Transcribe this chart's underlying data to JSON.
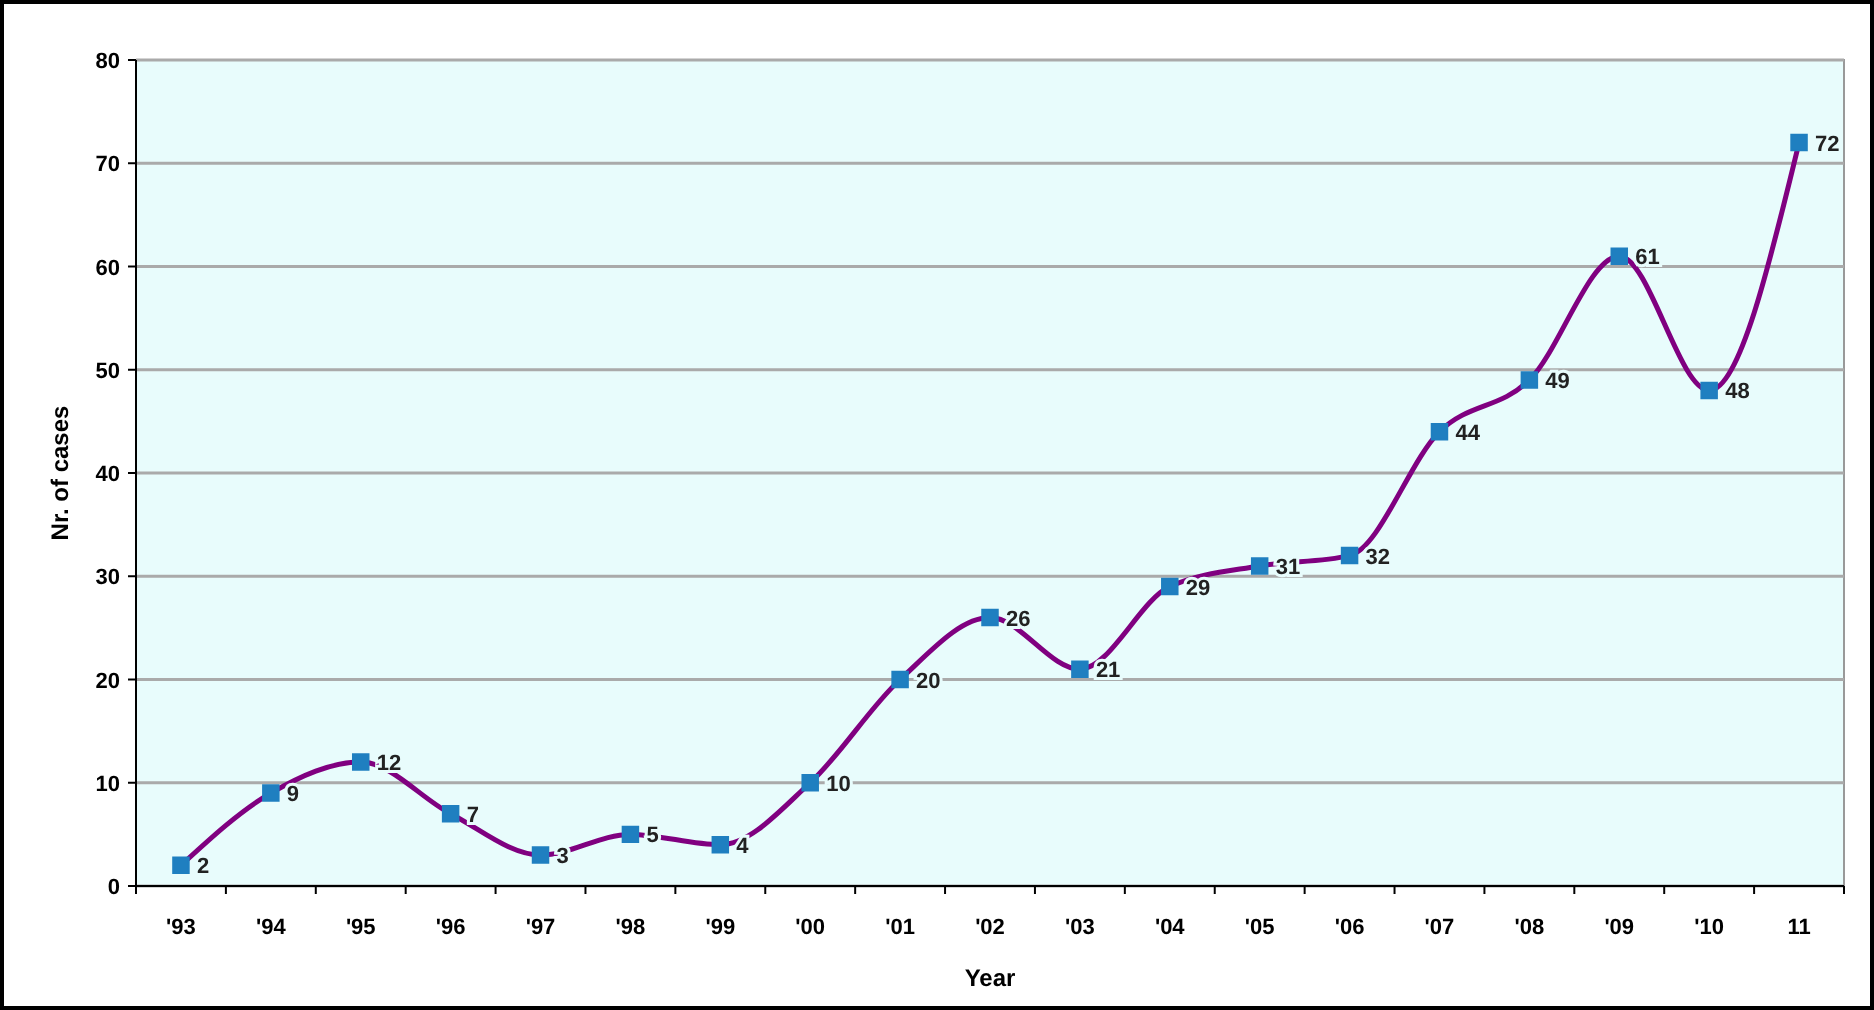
{
  "chart_data": {
    "type": "line",
    "xlabel": "Year",
    "ylabel": "Nr. of cases",
    "categories": [
      "'93",
      "'94",
      "'95",
      "'96",
      "'97",
      "'98",
      "'99",
      "'00",
      "'01",
      "'02",
      "'03",
      "'04",
      "'05",
      "'06",
      "'07",
      "'08",
      "'09",
      "'10",
      "11"
    ],
    "series": [
      {
        "color": "#800080",
        "values": [
          2,
          9,
          12,
          7,
          3,
          5,
          4,
          10,
          20,
          26,
          21,
          29,
          31,
          32,
          44,
          49,
          61,
          48,
          72
        ]
      }
    ],
    "ylim": [
      0,
      80
    ],
    "yticks": [
      0,
      10,
      20,
      30,
      40,
      50,
      60,
      70,
      80
    ],
    "grid": "y",
    "marker": "square",
    "line_style": "solid",
    "data_labels": true
  }
}
